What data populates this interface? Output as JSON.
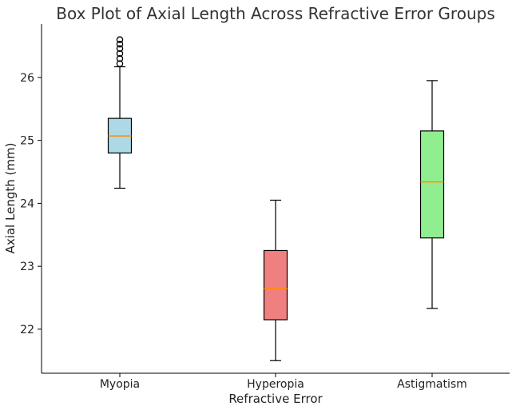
{
  "chart_data": {
    "type": "box",
    "title": "Box Plot of Axial Length Across Refractive Error Groups",
    "xlabel": "Refractive Error",
    "ylabel": "Axial Length (mm)",
    "categories": [
      "Myopia",
      "Hyperopia",
      "Astigmatism"
    ],
    "yticks": [
      "22",
      "23",
      "24",
      "25",
      "26"
    ],
    "ylim": [
      21.3,
      26.85
    ],
    "grid": false,
    "median_color": "#ff8c00",
    "series": [
      {
        "whisker_low": 24.24,
        "q1": 24.8,
        "median": 25.07,
        "q3": 25.35,
        "whisker_high": 26.17,
        "outliers": [
          26.22,
          26.3,
          26.38,
          26.46,
          26.53,
          26.6
        ],
        "color": "#add8e6"
      },
      {
        "whisker_low": 21.5,
        "q1": 22.15,
        "median": 22.65,
        "q3": 23.25,
        "whisker_high": 24.05,
        "outliers": [],
        "color": "#f08080"
      },
      {
        "whisker_low": 22.33,
        "q1": 23.45,
        "median": 24.34,
        "q3": 25.15,
        "whisker_high": 25.95,
        "outliers": [],
        "color": "#90ee90"
      }
    ]
  }
}
